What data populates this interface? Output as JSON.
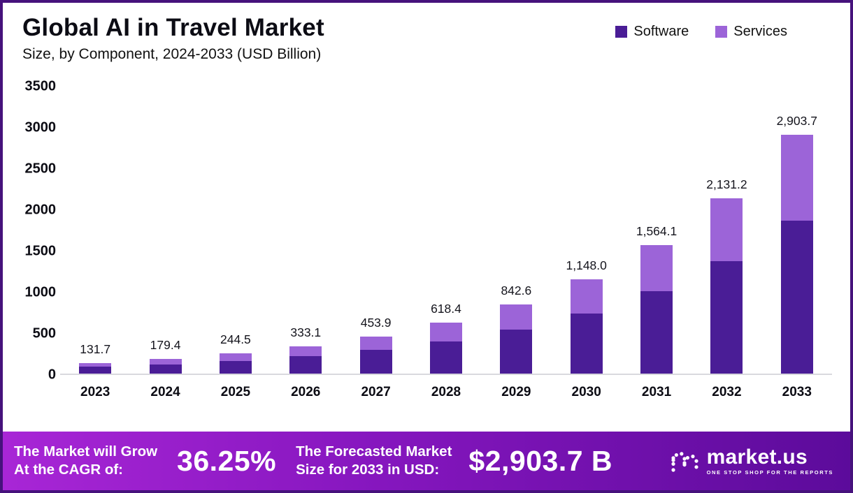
{
  "header": {
    "title": "Global AI in Travel Market",
    "subtitle": "Size, by Component, 2024-2033 (USD Billion)"
  },
  "chart_data": {
    "type": "bar",
    "stacked": true,
    "title": "Global AI in Travel Market",
    "subtitle": "Size, by Component, 2024-2033 (USD Billion)",
    "categories": [
      "2023",
      "2024",
      "2025",
      "2026",
      "2027",
      "2028",
      "2029",
      "2030",
      "2031",
      "2032",
      "2033"
    ],
    "totals": [
      131.7,
      179.4,
      244.5,
      333.1,
      453.9,
      618.4,
      842.6,
      1148.0,
      1564.1,
      2131.2,
      2903.7
    ],
    "total_labels": [
      "131.7",
      "179.4",
      "244.5",
      "333.1",
      "453.9",
      "618.4",
      "842.6",
      "1,148.0",
      "1,564.1",
      "2,131.2",
      "2,903.7"
    ],
    "series": [
      {
        "name": "Software",
        "color": "#4a1d96",
        "values": [
          84.5,
          114.9,
          156.6,
          213.3,
          290.7,
          396.0,
          539.5,
          735.0,
          1001.3,
          1364.5,
          1858.9
        ]
      },
      {
        "name": "Services",
        "color": "#9c64d8",
        "values": [
          47.2,
          64.5,
          87.9,
          119.8,
          163.2,
          222.4,
          303.1,
          413.0,
          562.8,
          766.7,
          1044.8
        ]
      }
    ],
    "xlabel": "",
    "ylabel": "",
    "ylim": [
      0,
      3500
    ],
    "yticks": [
      0,
      500,
      1000,
      1500,
      2000,
      2500,
      3000,
      3500
    ],
    "legend_position": "top-right",
    "grid": false
  },
  "banner": {
    "cagr_label_line1": "The Market will Grow",
    "cagr_label_line2": "At the CAGR of:",
    "cagr_value": "36.25%",
    "forecast_label_line1": "The Forecasted Market",
    "forecast_label_line2": "Size for 2033 in USD:",
    "forecast_value": "$2,903.7 B",
    "brand": "market.us",
    "brand_tagline": "ONE STOP SHOP FOR THE REPORTS"
  },
  "colors": {
    "software": "#4a1d96",
    "services": "#9c64d8",
    "frame_border": "#46127c",
    "banner_gradient_start": "#a826d6",
    "banner_gradient_end": "#5c0b9b"
  }
}
